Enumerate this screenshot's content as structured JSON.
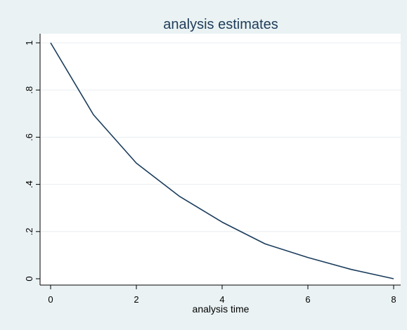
{
  "colors": {
    "background": "#eaf2f3",
    "plot_background": "#ffffff",
    "line": "#1a3c5c",
    "grid": "#e9eef0",
    "title": "#1e3c5a"
  },
  "chart_data": {
    "type": "line",
    "title": "analysis estimates",
    "xlabel": "analysis time",
    "ylabel": "",
    "xlim": [
      0,
      8
    ],
    "ylim": [
      0,
      1
    ],
    "xticks": [
      0,
      2,
      4,
      6,
      8
    ],
    "xtick_labels": [
      "0",
      "2",
      "4",
      "6",
      "8"
    ],
    "yticks": [
      0,
      0.2,
      0.4,
      0.6,
      0.8,
      1
    ],
    "ytick_labels": [
      "0",
      ".2",
      ".4",
      ".6",
      ".8",
      "1"
    ],
    "grid": true,
    "legend": "none",
    "series": [
      {
        "x": [
          0,
          1,
          2,
          3,
          4,
          5,
          6,
          7,
          8
        ],
        "y": [
          1.0,
          0.695,
          0.49,
          0.35,
          0.24,
          0.148,
          0.09,
          0.04,
          0.0
        ]
      }
    ]
  }
}
